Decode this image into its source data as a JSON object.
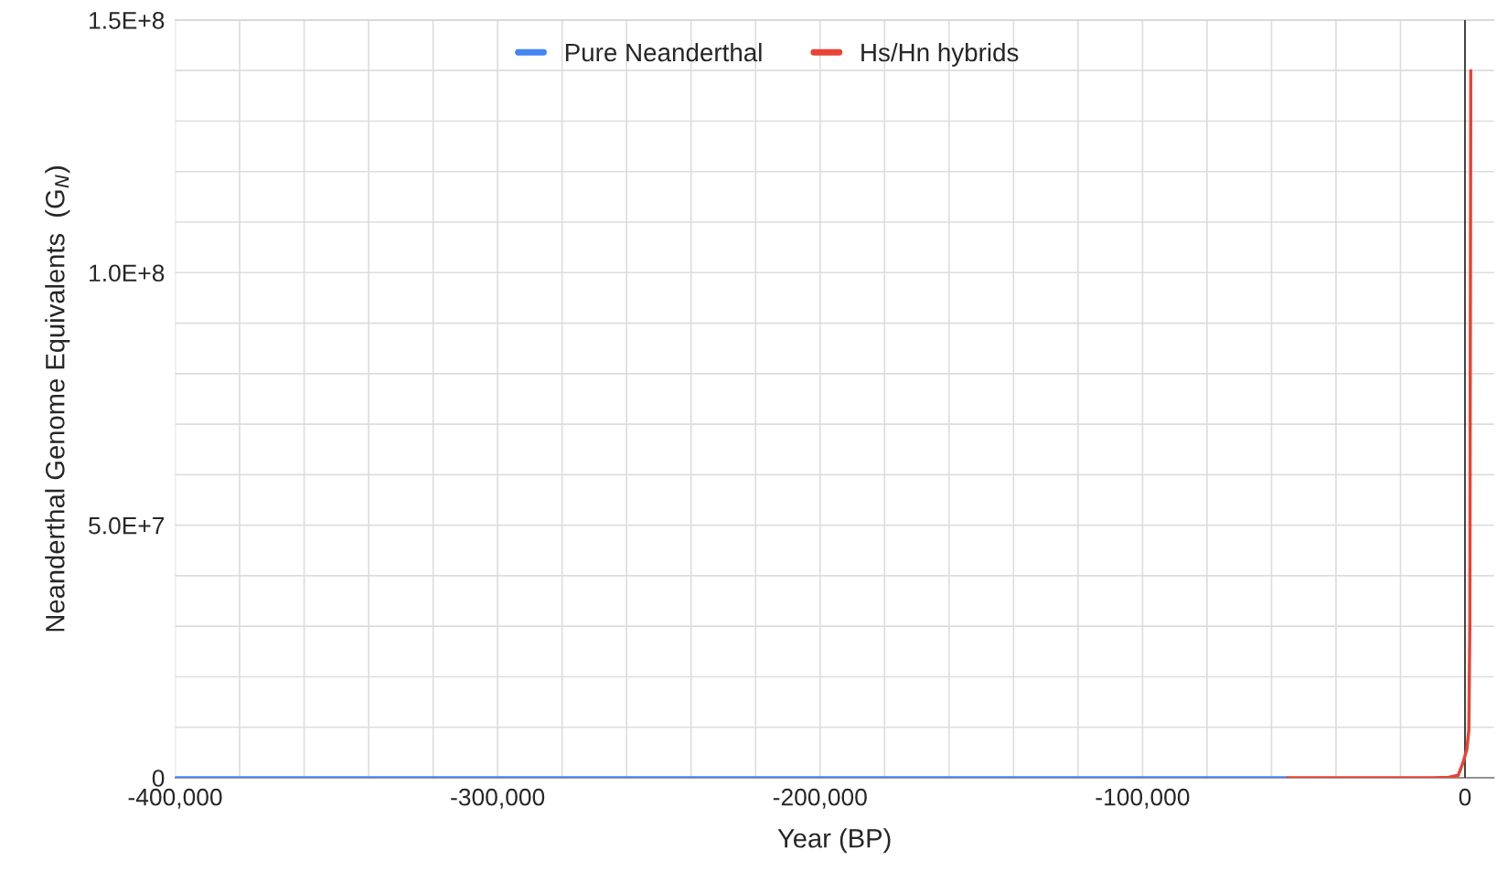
{
  "chart_data": {
    "type": "line",
    "xlabel": "Year (BP)",
    "ylabel": "Neanderthal Genome Equivalents  (G$_{N}$)",
    "series": [
      {
        "name": "Pure Neanderthal",
        "color": "#4285f4",
        "x": [
          -400000,
          -55000
        ],
        "values": [
          0,
          0
        ]
      },
      {
        "name": "Hs/Hn hybrids",
        "color": "#ea4335",
        "x": [
          -55000,
          -10000,
          -5000,
          -2100,
          -600,
          600,
          1200,
          1500,
          1800
        ],
        "values": [
          0,
          0,
          100000,
          500000,
          3000000,
          5700000,
          9500000,
          30000000,
          140000000
        ]
      }
    ],
    "xlim": [
      -400000,
      9000
    ],
    "ylim": [
      0,
      150000000
    ],
    "xticks": [
      {
        "value": -400000,
        "label": "-400,000"
      },
      {
        "value": -380000,
        "label": null
      },
      {
        "value": -360000,
        "label": null
      },
      {
        "value": -340000,
        "label": null
      },
      {
        "value": -320000,
        "label": null
      },
      {
        "value": -300000,
        "label": "-300,000"
      },
      {
        "value": -280000,
        "label": null
      },
      {
        "value": -260000,
        "label": null
      },
      {
        "value": -240000,
        "label": null
      },
      {
        "value": -220000,
        "label": null
      },
      {
        "value": -200000,
        "label": "-200,000"
      },
      {
        "value": -180000,
        "label": null
      },
      {
        "value": -160000,
        "label": null
      },
      {
        "value": -140000,
        "label": null
      },
      {
        "value": -120000,
        "label": null
      },
      {
        "value": -100000,
        "label": "-100,000"
      },
      {
        "value": -80000,
        "label": null
      },
      {
        "value": -60000,
        "label": null
      },
      {
        "value": -40000,
        "label": null
      },
      {
        "value": -20000,
        "label": null
      },
      {
        "value": 0,
        "label": "0"
      }
    ],
    "yticks": [
      0,
      {
        "value": 10000000,
        "label": null
      },
      {
        "value": 20000000,
        "label": null
      },
      {
        "value": 30000000,
        "label": null
      },
      {
        "value": 40000000,
        "label": null
      },
      {
        "value": 50000000,
        "label": "5.0E+7"
      },
      {
        "value": 60000000,
        "label": null
      },
      {
        "value": 70000000,
        "label": null
      },
      {
        "value": 80000000,
        "label": null
      },
      {
        "value": 90000000,
        "label": null
      },
      {
        "value": 100000000,
        "label": "1.0E+8"
      },
      {
        "value": 110000000,
        "label": null
      },
      {
        "value": 120000000,
        "label": null
      },
      {
        "value": 130000000,
        "label": null
      },
      {
        "value": 140000000,
        "label": null
      },
      {
        "value": 150000000,
        "label": "1.5E+8"
      }
    ],
    "ref_lines": [
      {
        "axis": "x",
        "value": 0,
        "color": "#333333"
      }
    ],
    "grid": true,
    "legend": "top",
    "line_style": "solid",
    "marker": "none"
  }
}
